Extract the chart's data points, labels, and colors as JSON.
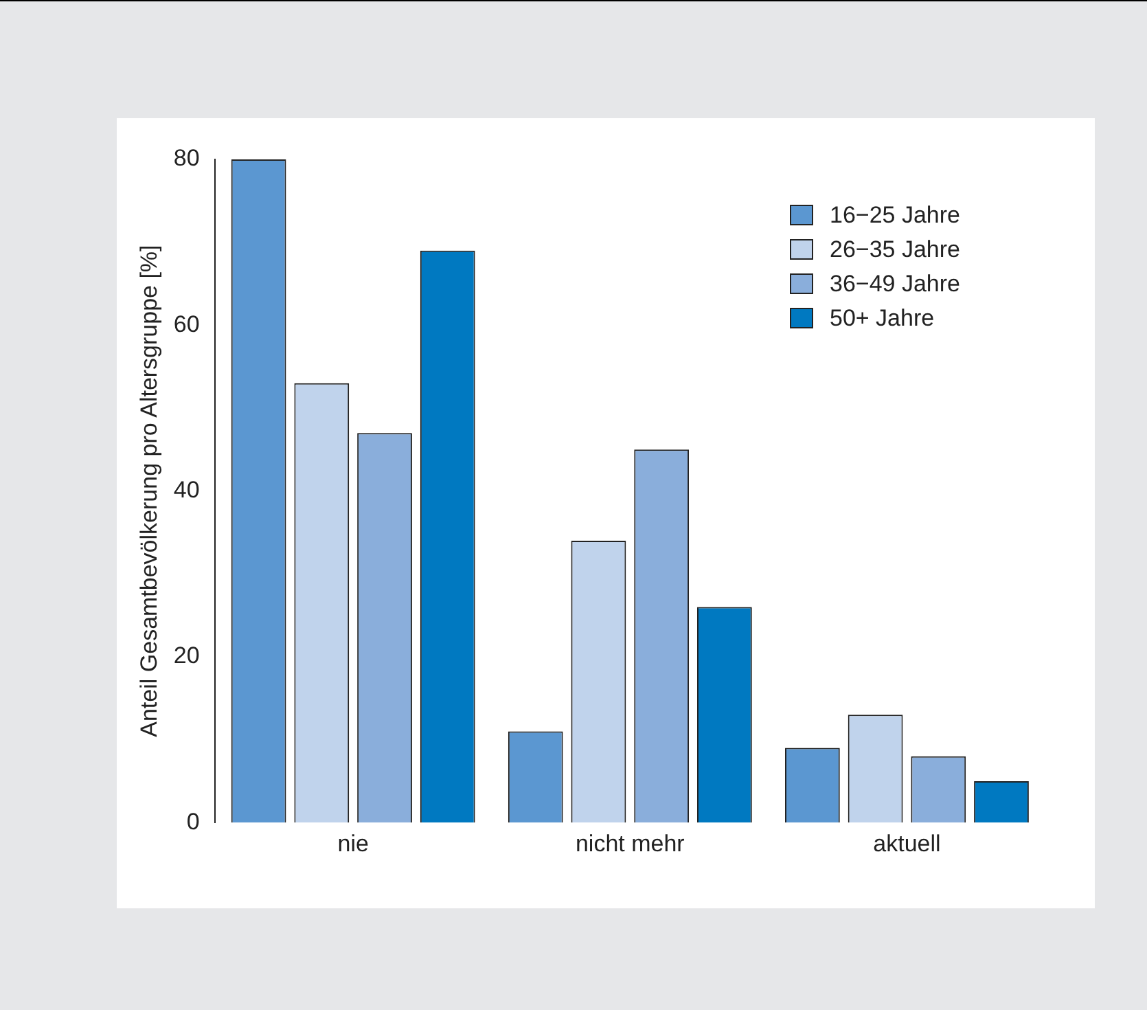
{
  "chart_data": {
    "type": "bar",
    "ylabel": "Anteil Gesamtbevölkerung pro Altersgruppe [%]",
    "categories": [
      "nie",
      "nicht mehr",
      "aktuell"
    ],
    "series": [
      {
        "name": "16−25 Jahre",
        "color": "#5b97d1",
        "values": [
          80,
          11,
          9
        ]
      },
      {
        "name": "26−35 Jahre",
        "color": "#c0d3ec",
        "values": [
          53,
          34,
          13
        ]
      },
      {
        "name": "36−49 Jahre",
        "color": "#8aaedb",
        "values": [
          47,
          45,
          8
        ]
      },
      {
        "name": "50+ Jahre",
        "color": "#0079c1",
        "values": [
          69,
          26,
          5
        ]
      }
    ],
    "ylim": [
      0,
      80
    ],
    "yticks": [
      0,
      20,
      40,
      60,
      80
    ],
    "grid": false,
    "legend": "top right"
  }
}
